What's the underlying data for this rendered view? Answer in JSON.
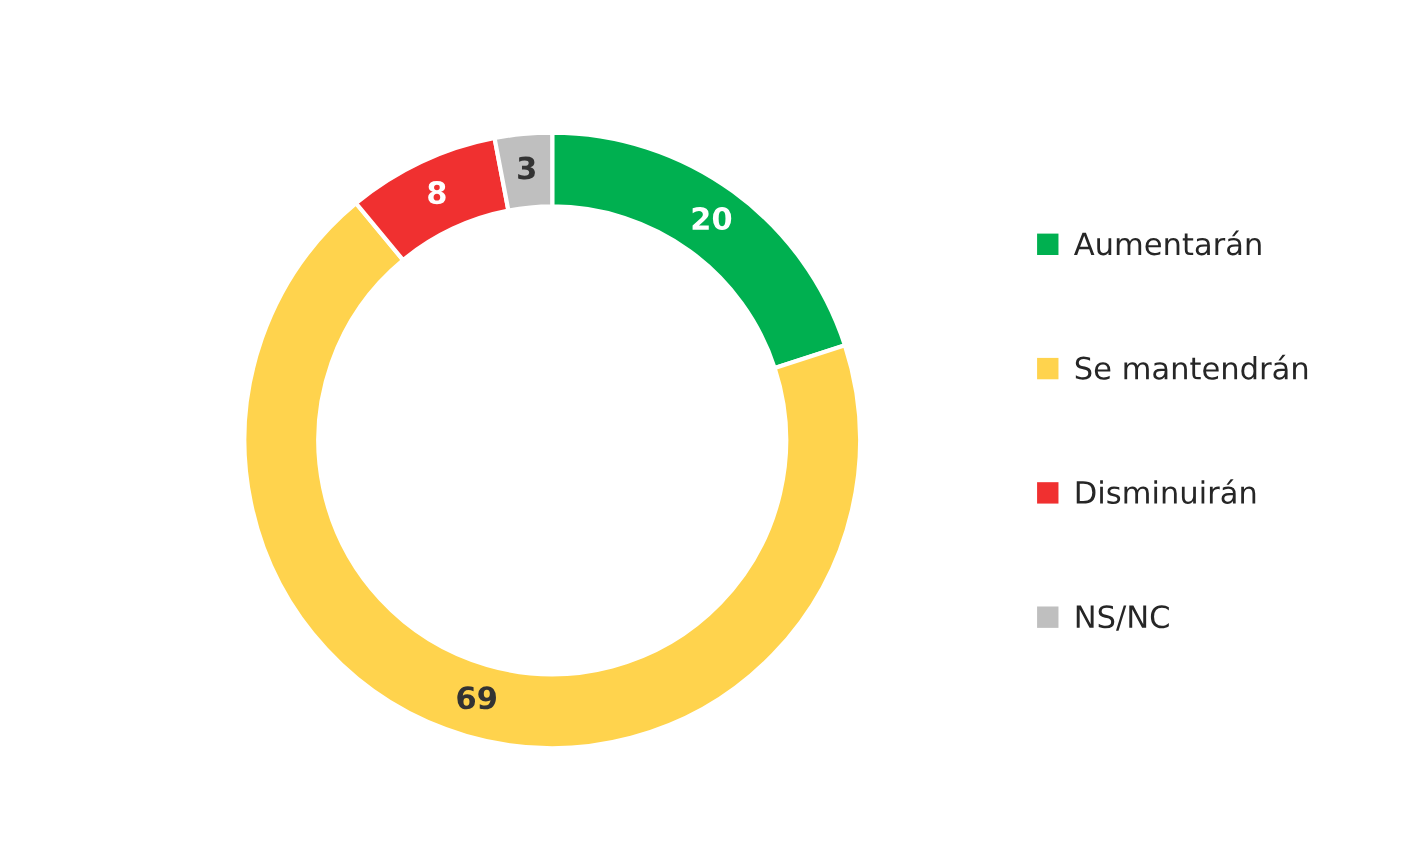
{
  "chart_data": {
    "type": "donut",
    "categories": [
      "Aumentarán",
      "Se mantendrán",
      "Disminuirán",
      "NS/NC"
    ],
    "values": [
      20,
      69,
      8,
      3
    ],
    "colors": [
      "#00b050",
      "#ffd34d",
      "#f03030",
      "#bfbfbf"
    ],
    "data_labels": true,
    "legend": "right"
  }
}
